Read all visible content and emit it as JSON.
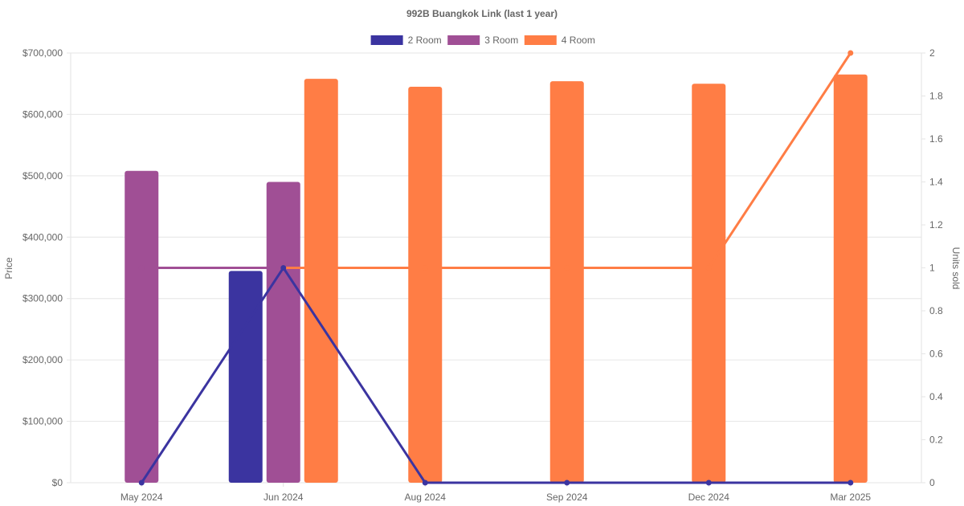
{
  "chart_data": {
    "type": "bar",
    "title": "992B Buangkok Link (last 1 year)",
    "categories": [
      "May 2024",
      "Jun 2024",
      "Aug 2024",
      "Sep 2024",
      "Dec 2024",
      "Mar 2025"
    ],
    "legend_position": "top",
    "grid": true,
    "y_left": {
      "label": "Price",
      "range": [
        0,
        700000
      ],
      "ticks": [
        "$0",
        "$100,000",
        "$200,000",
        "$300,000",
        "$400,000",
        "$500,000",
        "$600,000",
        "$700,000"
      ]
    },
    "y_right": {
      "label": "Units sold",
      "range": [
        0,
        2
      ],
      "ticks": [
        "0",
        "0.2",
        "0.4",
        "0.6",
        "0.8",
        "1",
        "1.2",
        "1.4",
        "1.6",
        "1.8",
        "2"
      ]
    },
    "series": [
      {
        "name": "2 Room",
        "color": "#3b34a0",
        "price": [
          null,
          345000,
          null,
          null,
          null,
          null
        ],
        "units": [
          0,
          1,
          0,
          0,
          0,
          0
        ]
      },
      {
        "name": "3 Room",
        "color": "#a04f95",
        "price": [
          508000,
          490000,
          null,
          null,
          null,
          null
        ],
        "units": [
          1,
          1,
          null,
          null,
          null,
          null
        ]
      },
      {
        "name": "4 Room",
        "color": "#ff7d45",
        "price": [
          null,
          658000,
          645000,
          654000,
          650000,
          665000
        ],
        "units": [
          null,
          1,
          1,
          1,
          1,
          2
        ]
      }
    ]
  }
}
